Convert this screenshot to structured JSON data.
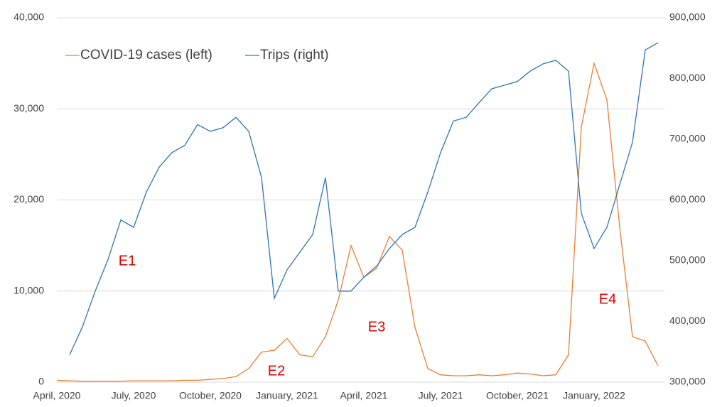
{
  "chart_data": {
    "type": "line",
    "categories": [
      "April, 2020",
      null,
      null,
      null,
      null,
      null,
      "July, 2020",
      null,
      null,
      null,
      null,
      null,
      "October, 2020",
      null,
      null,
      null,
      null,
      null,
      "January, 2021",
      null,
      null,
      null,
      null,
      null,
      "April, 2021",
      null,
      null,
      null,
      null,
      null,
      "July, 2021",
      null,
      null,
      null,
      null,
      null,
      "October, 2021",
      null,
      null,
      null,
      null,
      null,
      "January, 2022",
      null,
      null,
      null,
      null,
      null
    ],
    "series": [
      {
        "name": "COVID-19 cases (left)",
        "color": "#ed7d31",
        "values": [
          200,
          150,
          100,
          100,
          100,
          100,
          150,
          150,
          150,
          150,
          200,
          200,
          300,
          400,
          600,
          1500,
          3300,
          3500,
          4800,
          3000,
          2800,
          5000,
          9000,
          15000,
          11500,
          12500,
          16000,
          14500,
          6000,
          1500,
          800,
          700,
          700,
          800,
          700,
          800,
          1000,
          900,
          700,
          800,
          3000,
          28000,
          35000,
          31000,
          17000,
          5000,
          4500,
          1800
        ]
      },
      {
        "name": "Trips (right)",
        "color": "#2e75b6",
        "axis": "y2",
        "values": [
          null,
          345000,
          391000,
          450000,
          502000,
          567000,
          555000,
          613000,
          654000,
          678000,
          690000,
          724000,
          713000,
          719000,
          736000,
          713000,
          637000,
          438000,
          485000,
          514000,
          543000,
          637000,
          450000,
          450000,
          473000,
          491000,
          520000,
          543000,
          555000,
          613000,
          678000,
          730000,
          736000,
          760000,
          783000,
          789000,
          795000,
          812000,
          824000,
          830000,
          812000,
          578000,
          520000,
          555000,
          625000,
          695000,
          847000,
          859000
        ]
      }
    ],
    "ylim": [
      0,
      40000
    ],
    "yticks": [
      0,
      {
        "value": 10000,
        "label": "10,000"
      },
      {
        "value": 20000,
        "label": "20,000"
      },
      {
        "value": 30000,
        "label": "30,000"
      },
      {
        "value": 40000,
        "label": "40,000"
      }
    ],
    "y2lim": [
      300000,
      900000
    ],
    "y2ticks": [
      {
        "value": 300000,
        "label": "300,000"
      },
      {
        "value": 400000,
        "label": "400,000"
      },
      {
        "value": 500000,
        "label": "500,000"
      },
      {
        "value": 600000,
        "label": "600,000"
      },
      {
        "value": 700000,
        "label": "700,000"
      },
      {
        "value": 800000,
        "label": "800,000"
      },
      {
        "value": 900000,
        "label": "900,000"
      }
    ],
    "grid": true,
    "legend": "top-left",
    "annotations": [
      "E1",
      "E2",
      "E3",
      "E4"
    ],
    "annotation_color": "#e00000"
  }
}
